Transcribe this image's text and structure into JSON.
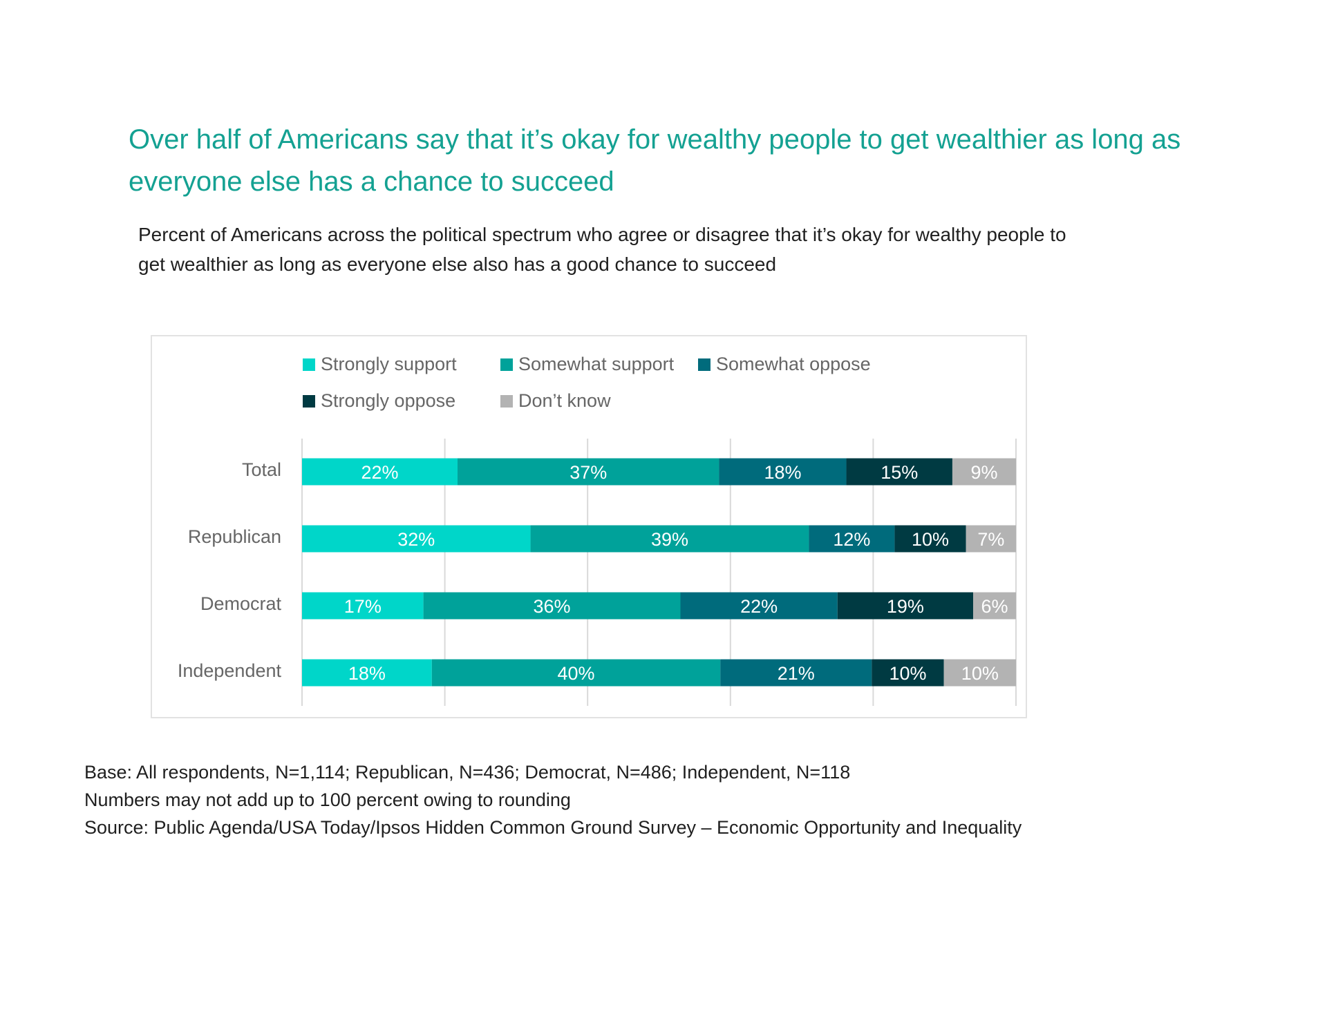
{
  "chart_data": {
    "type": "bar",
    "orientation": "horizontal",
    "stacked": true,
    "title": "Over half of Americans say that it’s okay for wealthy people to get wealthier as long as everyone else has a chance to succeed",
    "subtitle": "Percent of Americans across the political spectrum who agree or disagree that it’s okay for wealthy people to get wealthier as long as everyone else also has a good chance to succeed",
    "categories": [
      "Total",
      "Republican",
      "Democrat",
      "Independent"
    ],
    "series": [
      {
        "name": "Strongly support",
        "color": "#00d6c9",
        "values": [
          22,
          32,
          17,
          18
        ],
        "labels": [
          "22%",
          "32%",
          "17%",
          "18%"
        ]
      },
      {
        "name": "Somewhat support",
        "color": "#00a29a",
        "values": [
          37,
          39,
          36,
          40
        ],
        "labels": [
          "37%",
          "39%",
          "36%",
          "40%"
        ]
      },
      {
        "name": "Somewhat oppose",
        "color": "#006b7c",
        "values": [
          18,
          12,
          22,
          21
        ],
        "labels": [
          "18%",
          "12%",
          "22%",
          "21%"
        ]
      },
      {
        "name": "Strongly oppose",
        "color": "#003a42",
        "values": [
          15,
          10,
          19,
          10
        ],
        "labels": [
          "15%",
          "10%",
          "19%",
          "10%"
        ]
      },
      {
        "name": "Don’t know",
        "color": "#b3b3b3",
        "values": [
          9,
          7,
          6,
          10
        ],
        "labels": [
          "9%",
          "7%",
          "6%",
          "10%"
        ]
      }
    ],
    "xlim": [
      0,
      100
    ],
    "grid": true,
    "legend_position": "top"
  },
  "notes": [
    "Base: All respondents, N=1,114; Republican, N=436; Democrat, N=486; Independent, N=118",
    "Numbers may not add up to 100 percent owing to rounding",
    "Source: Public Agenda/USA Today/Ipsos Hidden Common Ground Survey – Economic Opportunity and Inequality"
  ]
}
